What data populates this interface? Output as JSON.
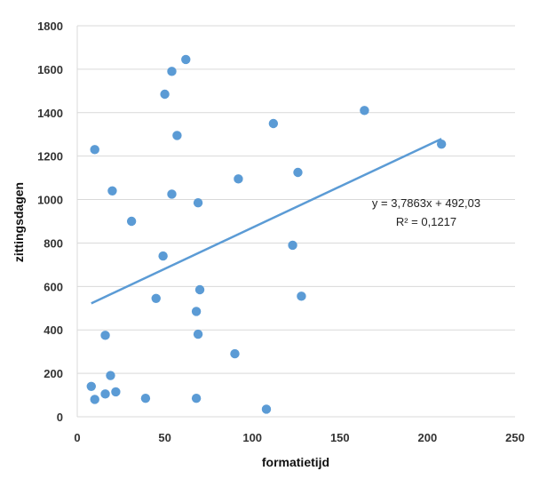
{
  "chart_data": {
    "type": "scatter",
    "title": "",
    "xlabel": "formatietijd",
    "ylabel": "zittingsdagen",
    "xlim": [
      0,
      250
    ],
    "ylim": [
      0,
      1800
    ],
    "x_ticks": [
      "0",
      "50",
      "100",
      "150",
      "200",
      "250"
    ],
    "y_ticks": [
      "0",
      "200",
      "400",
      "600",
      "800",
      "1000",
      "1200",
      "1400",
      "1600",
      "1800"
    ],
    "grid": true,
    "legend": "none",
    "colors": {
      "points": "#5b9bd5",
      "trendline": "#5b9bd5",
      "grid": "#d9d9d9"
    },
    "points": [
      {
        "x": 62,
        "y": 1645
      },
      {
        "x": 54,
        "y": 1590
      },
      {
        "x": 50,
        "y": 1485
      },
      {
        "x": 164,
        "y": 1410
      },
      {
        "x": 112,
        "y": 1350
      },
      {
        "x": 57,
        "y": 1295
      },
      {
        "x": 208,
        "y": 1255
      },
      {
        "x": 10,
        "y": 1230
      },
      {
        "x": 126,
        "y": 1125
      },
      {
        "x": 92,
        "y": 1095
      },
      {
        "x": 20,
        "y": 1040
      },
      {
        "x": 54,
        "y": 1025
      },
      {
        "x": 69,
        "y": 985
      },
      {
        "x": 31,
        "y": 900
      },
      {
        "x": 123,
        "y": 790
      },
      {
        "x": 49,
        "y": 740
      },
      {
        "x": 70,
        "y": 585
      },
      {
        "x": 128,
        "y": 555
      },
      {
        "x": 45,
        "y": 545
      },
      {
        "x": 68,
        "y": 485
      },
      {
        "x": 16,
        "y": 375
      },
      {
        "x": 69,
        "y": 380
      },
      {
        "x": 90,
        "y": 290
      },
      {
        "x": 19,
        "y": 190
      },
      {
        "x": 8,
        "y": 140
      },
      {
        "x": 22,
        "y": 115
      },
      {
        "x": 16,
        "y": 105
      },
      {
        "x": 10,
        "y": 80
      },
      {
        "x": 39,
        "y": 85
      },
      {
        "x": 68,
        "y": 85
      },
      {
        "x": 108,
        "y": 35
      }
    ],
    "trendline": {
      "type": "linear",
      "slope": 3.7863,
      "intercept": 492.03,
      "x_range": [
        8,
        208
      ]
    },
    "annotations": {
      "equation": "y = 3,7863x + 492,03",
      "r_squared": "R² = 0,1217"
    }
  }
}
